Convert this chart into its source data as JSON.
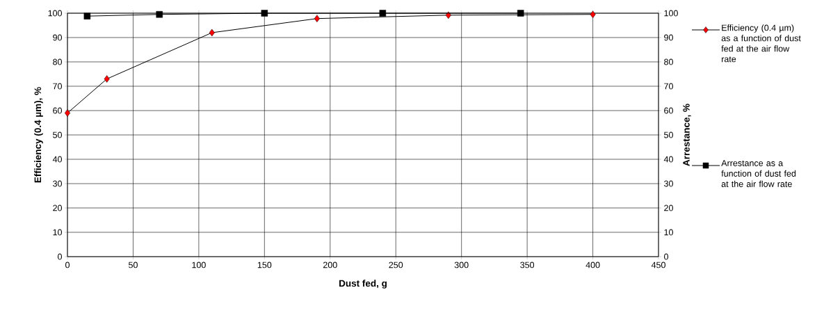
{
  "chart_data": {
    "type": "line",
    "xlabel": "Dust fed, g",
    "ylabel": "Efficiency (0.4 µm), %",
    "y2label": "Arrestance, %",
    "series": [
      {
        "name": "Efficiency (0.4 µm) as a function of dust fed at the air flow rate",
        "color": "#ff0000",
        "marker": "diamond",
        "x": [
          0,
          30,
          110,
          190,
          290,
          400
        ],
        "values": [
          59,
          73,
          92,
          97.8,
          99.2,
          99.5
        ]
      },
      {
        "name": "Arrestance as a function of dust fed at the air flow rate",
        "color": "#000000",
        "marker": "square",
        "axis": "y2",
        "x": [
          15,
          70,
          150,
          240,
          345
        ],
        "values": [
          98.8,
          99.5,
          100,
          100,
          100
        ]
      }
    ],
    "xlim": [
      0,
      450
    ],
    "xticks": [
      0,
      50,
      100,
      150,
      200,
      250,
      300,
      350,
      400,
      450
    ],
    "ylim": [
      0,
      100
    ],
    "yticks": [
      0,
      10,
      20,
      30,
      40,
      50,
      60,
      70,
      80,
      90,
      100
    ],
    "y2lim": [
      0,
      100
    ],
    "y2ticks": [
      0,
      10,
      20,
      30,
      40,
      50,
      60,
      70,
      80,
      90,
      100
    ],
    "grid": true,
    "legend": "right",
    "line_style": "solid"
  }
}
